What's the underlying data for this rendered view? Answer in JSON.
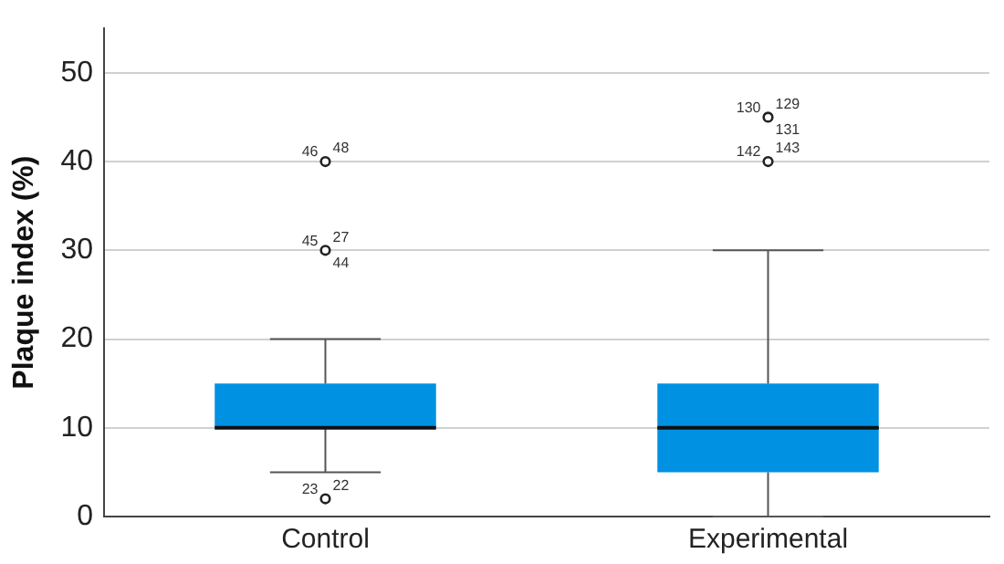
{
  "chart_data": {
    "type": "box",
    "ylabel": "Plaque index (%)",
    "categories": [
      "Control",
      "Experimental"
    ],
    "color": "#0091e3",
    "boxes": [
      {
        "low": 5,
        "q1": 10,
        "median": 10,
        "q3": 15,
        "high": 20
      },
      {
        "low": 0,
        "q1": 5,
        "median": 10,
        "q3": 15,
        "high": 30
      }
    ],
    "series": [
      {
        "type": "scatter",
        "color": "#222222",
        "marker": "circle",
        "x": [
          "Control",
          "Control",
          "Control",
          "Experimental",
          "Experimental"
        ],
        "values": [
          2,
          30,
          40,
          40,
          45
        ]
      }
    ],
    "ylim": [
      0,
      55
    ],
    "yticks": [
      0,
      10,
      20,
      30,
      40,
      50
    ],
    "grid": "y",
    "legend": false,
    "annotations": [
      {
        "text": "23",
        "x": "Control",
        "y": 2
      },
      {
        "text": "22",
        "x": "Control",
        "y": 2
      },
      {
        "text": "45",
        "x": "Control",
        "y": 30
      },
      {
        "text": "27",
        "x": "Control",
        "y": 30
      },
      {
        "text": "44",
        "x": "Control",
        "y": 30
      },
      {
        "text": "46",
        "x": "Control",
        "y": 40
      },
      {
        "text": "48",
        "x": "Control",
        "y": 40
      },
      {
        "text": "130",
        "x": "Experimental",
        "y": 45
      },
      {
        "text": "129",
        "x": "Experimental",
        "y": 45
      },
      {
        "text": "131",
        "x": "Experimental",
        "y": 45
      },
      {
        "text": "142",
        "x": "Experimental",
        "y": 40
      },
      {
        "text": "143",
        "x": "Experimental",
        "y": 40
      }
    ]
  }
}
